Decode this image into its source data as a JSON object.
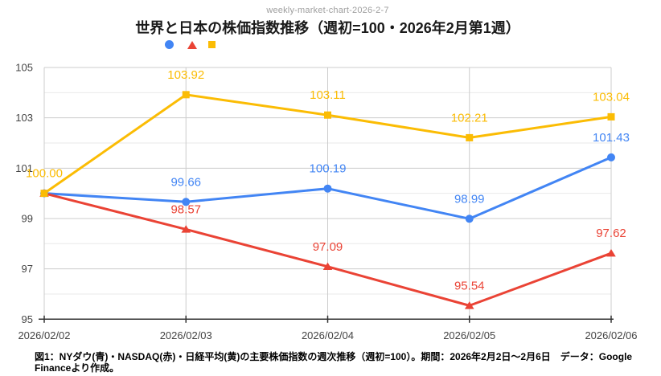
{
  "header": {
    "file_label": "weekly-market-chart-2026-2-7"
  },
  "colors": {
    "dow_blue": "#4285F4",
    "nasdaq_red": "#EA4335",
    "nikkei_yellow": "#FBBC04",
    "grid_major": "#cccccc",
    "grid_minor": "#e9e9e9",
    "axis": "#333333",
    "axis_label": "#444444",
    "note_gray": "#9e9e9e"
  },
  "chart_data": {
    "type": "line",
    "title": "世界と日本の株価指数推移（週初=100・2026年2月第1週）",
    "x": [
      "2026/02/02",
      "2026/02/03",
      "2026/02/04",
      "2026/02/05",
      "2026/02/06"
    ],
    "series": [
      {
        "name": "NYダウ",
        "color_key": "dow_blue",
        "marker": "circle",
        "values": [
          100.0,
          99.66,
          100.19,
          98.99,
          101.43
        ],
        "labels": [
          "",
          "99.66",
          "100.19",
          "98.99",
          "101.43"
        ]
      },
      {
        "name": "NASDAQ",
        "color_key": "nasdaq_red",
        "marker": "triangle",
        "values": [
          100.0,
          98.57,
          97.09,
          95.54,
          97.62
        ],
        "labels": [
          "",
          "98.57",
          "97.09",
          "95.54",
          "97.62"
        ]
      },
      {
        "name": "日経平均",
        "color_key": "nikkei_yellow",
        "marker": "square",
        "values": [
          100.0,
          103.92,
          103.11,
          102.21,
          103.04
        ],
        "labels": [
          "100.00",
          "103.92",
          "103.11",
          "102.21",
          "103.04"
        ]
      }
    ],
    "y_ticks": [
      95,
      97,
      99,
      101,
      103,
      105
    ],
    "y_minor": [
      96,
      98,
      100,
      102,
      104
    ],
    "ylim": [
      95,
      105
    ],
    "grid": true,
    "legend_position": "top-left-markers-only"
  },
  "footer": {
    "caption": "図1：NYダウ(青)・NASDAQ(赤)・日経平均(黄)の主要株価指数の週次推移（週初=100）。期間：2026年2月2日～2月6日　データ：Google Financeより作成。"
  }
}
